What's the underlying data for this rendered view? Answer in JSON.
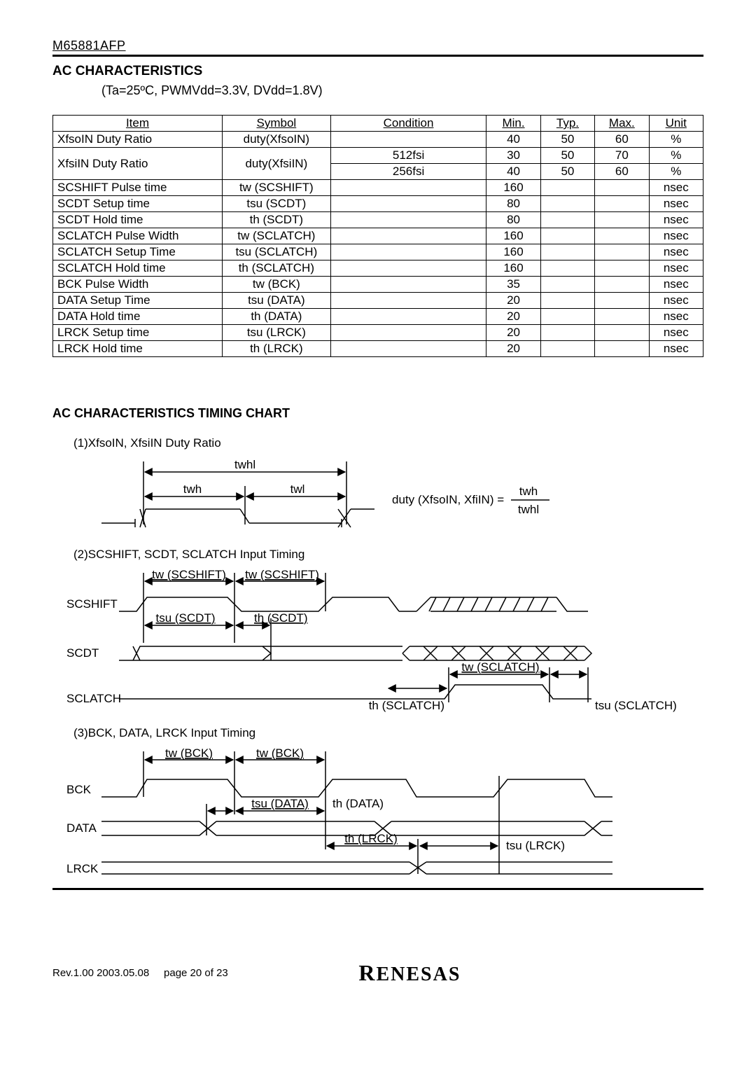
{
  "header": {
    "part_number": "M65881AFP"
  },
  "section1": {
    "title": "AC CHARACTERISTICS",
    "condition": "(Ta=25ºC, PWMVdd=3.3V, DVdd=1.8V)"
  },
  "table": {
    "columns": [
      "Item",
      "Symbol",
      "Condition",
      "Min.",
      "Typ.",
      "Max.",
      "Unit"
    ],
    "col_widths": [
      "25%",
      "16%",
      "21%",
      "8%",
      "8%",
      "8%",
      "8%"
    ],
    "rows": [
      {
        "item": "XfsoIN Duty Ratio",
        "symbol": "duty(XfsoIN)",
        "condition": "",
        "min": "40",
        "typ": "50",
        "max": "60",
        "unit": "%",
        "rowspan": 1
      },
      {
        "item": "XfsiIN Duty Ratio",
        "symbol": "duty(XfsiIN)",
        "condition": "512fsi",
        "min": "30",
        "typ": "50",
        "max": "70",
        "unit": "%",
        "rowspan": 2
      },
      {
        "item": "",
        "symbol": "",
        "condition": "256fsi",
        "min": "40",
        "typ": "50",
        "max": "60",
        "unit": "%",
        "rowspan": 0
      },
      {
        "item": "SCSHIFT Pulse time",
        "symbol": "tw (SCSHIFT)",
        "condition": "",
        "min": "160",
        "typ": "",
        "max": "",
        "unit": "nsec",
        "rowspan": 1
      },
      {
        "item": "SCDT Setup time",
        "symbol": "tsu (SCDT)",
        "condition": "",
        "min": "80",
        "typ": "",
        "max": "",
        "unit": "nsec",
        "rowspan": 1
      },
      {
        "item": "SCDT Hold time",
        "symbol": "th (SCDT)",
        "condition": "",
        "min": "80",
        "typ": "",
        "max": "",
        "unit": "nsec",
        "rowspan": 1
      },
      {
        "item": "SCLATCH Pulse Width",
        "symbol": "tw (SCLATCH)",
        "condition": "",
        "min": "160",
        "typ": "",
        "max": "",
        "unit": "nsec",
        "rowspan": 1
      },
      {
        "item": "SCLATCH Setup Time",
        "symbol": "tsu (SCLATCH)",
        "condition": "",
        "min": "160",
        "typ": "",
        "max": "",
        "unit": "nsec",
        "rowspan": 1
      },
      {
        "item": "SCLATCH Hold time",
        "symbol": "th (SCLATCH)",
        "condition": "",
        "min": "160",
        "typ": "",
        "max": "",
        "unit": "nsec",
        "rowspan": 1
      },
      {
        "item": "BCK Pulse Width",
        "symbol": "tw (BCK)",
        "condition": "",
        "min": "35",
        "typ": "",
        "max": "",
        "unit": "nsec",
        "rowspan": 1
      },
      {
        "item": "DATA Setup Time",
        "symbol": "tsu (DATA)",
        "condition": "",
        "min": "20",
        "typ": "",
        "max": "",
        "unit": "nsec",
        "rowspan": 1
      },
      {
        "item": "DATA Hold time",
        "symbol": "th (DATA)",
        "condition": "",
        "min": "20",
        "typ": "",
        "max": "",
        "unit": "nsec",
        "rowspan": 1
      },
      {
        "item": "LRCK Setup time",
        "symbol": "tsu (LRCK)",
        "condition": "",
        "min": "20",
        "typ": "",
        "max": "",
        "unit": "nsec",
        "rowspan": 1
      },
      {
        "item": "LRCK Hold time",
        "symbol": "th (LRCK)",
        "condition": "",
        "min": "20",
        "typ": "",
        "max": "",
        "unit": "nsec",
        "rowspan": 1
      }
    ]
  },
  "section2": {
    "title": "AC CHARACTERISTICS TIMING CHART"
  },
  "diagram1": {
    "caption": "(1)XfsoIN, XfsiIN Duty Ratio",
    "labels": {
      "twhl": "twhl",
      "twh": "twh",
      "twl": "twl",
      "formula_left": "duty (XfsoIN, XfiIN) =",
      "formula_num": "twh",
      "formula_den": "twhl"
    }
  },
  "diagram2": {
    "caption": "(2)SCSHIFT, SCDT, SCLATCH Input Timing",
    "labels": {
      "tw_scshift_1": "tw (SCSHIFT)",
      "tw_scshift_2": "tw (SCSHIFT)",
      "tsu_scdt": "tsu (SCDT)",
      "th_scdt": "th (SCDT)",
      "tw_sclatch": "tw (SCLATCH)",
      "th_sclatch": "th (SCLATCH)",
      "tsu_sclatch": "tsu (SCLATCH)",
      "sig_scshift": "SCSHIFT",
      "sig_scdt": "SCDT",
      "sig_sclatch": "SCLATCH"
    }
  },
  "diagram3": {
    "caption": "(3)BCK, DATA, LRCK Input Timing",
    "labels": {
      "tw_bck_1": "tw (BCK)",
      "tw_bck_2": "tw (BCK)",
      "tsu_data": "tsu (DATA)",
      "th_data": "th (DATA)",
      "th_lrck": "th (LRCK)",
      "tsu_lrck": "tsu (LRCK)",
      "sig_bck": "BCK",
      "sig_data": "DATA",
      "sig_lrck": "LRCK"
    }
  },
  "footer": {
    "rev": "Rev.1.00  2003.05.08",
    "page": "page 20 of 23",
    "logo": "RENESAS"
  },
  "colors": {
    "stroke": "#000000",
    "bg": "#ffffff"
  }
}
